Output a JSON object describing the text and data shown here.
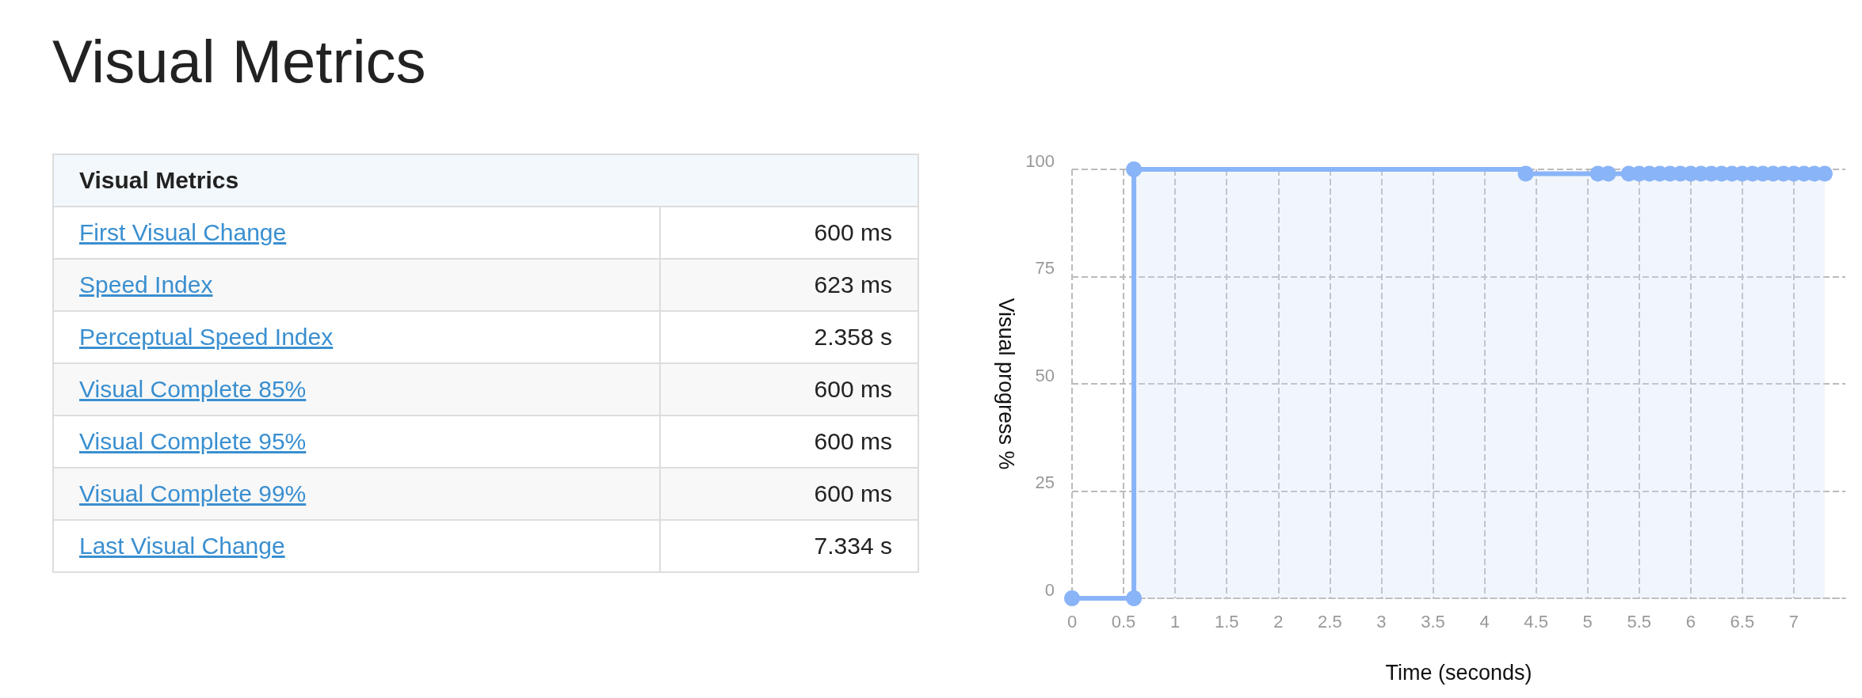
{
  "chart_data": [
    {
      "type": "other",
      "title": "Visual Metrics",
      "subtitle": "Visual Metrics",
      "categories": [
        "First Visual Change",
        "Speed Index",
        "Perceptual Speed Index",
        "Visual Complete 85%",
        "Visual Complete 95%",
        "Visual Complete 99%",
        "Last Visual Change"
      ],
      "value_labels": [
        "600 ms",
        "623 ms",
        "2.358 s",
        "600 ms",
        "600 ms",
        "600 ms",
        "7.334 s"
      ]
    },
    {
      "type": "step",
      "xlabel": "Time (seconds)",
      "ylabel": "Visual progress %",
      "xlim": [
        0,
        7.5
      ],
      "ylim": [
        0,
        100
      ],
      "xticks": [
        0,
        0.5,
        1,
        1.5,
        2,
        2.5,
        3,
        3.5,
        4,
        4.5,
        5,
        5.5,
        6,
        6.5,
        7
      ],
      "yticks": [
        0,
        25,
        50,
        75,
        100
      ],
      "grid": true,
      "marker": "circle",
      "line_style": "solid",
      "series": [
        {
          "color": "#8ab4f8",
          "x": [
            0,
            0.6,
            0.6,
            4.4,
            5.1,
            5.2,
            5.4,
            5.5,
            5.6,
            5.7,
            5.8,
            5.9,
            6.0,
            6.1,
            6.2,
            6.3,
            6.4,
            6.5,
            6.6,
            6.7,
            6.8,
            6.9,
            7.0,
            7.1,
            7.2,
            7.3
          ],
          "values": [
            0,
            0,
            100,
            99,
            99,
            99,
            99,
            99,
            99,
            99,
            99,
            99,
            99,
            99,
            99,
            99,
            99,
            99,
            99,
            99,
            99,
            99,
            99,
            99,
            99,
            99
          ]
        }
      ]
    }
  ]
}
